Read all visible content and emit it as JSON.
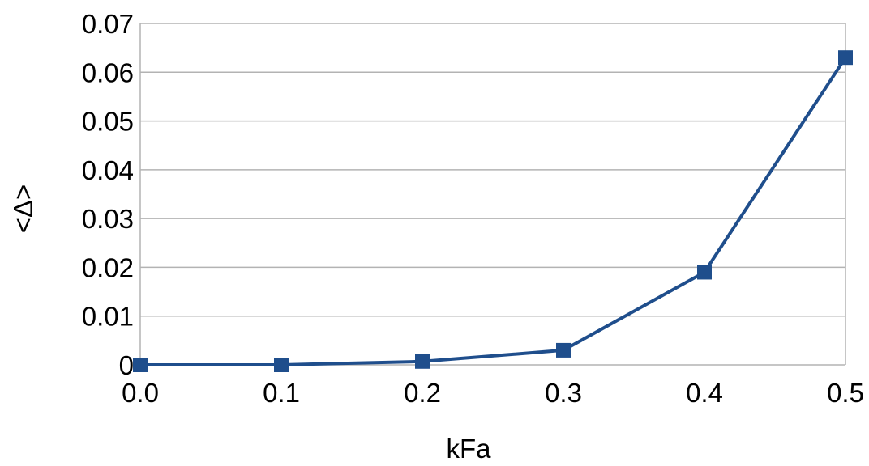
{
  "chart_data": {
    "type": "line",
    "title": "",
    "xlabel": "kFa",
    "ylabel": "<Δ>",
    "x": [
      0.0,
      0.1,
      0.2,
      0.3,
      0.4,
      0.5
    ],
    "series": [
      {
        "values": [
          0.0,
          0.0,
          0.0007,
          0.003,
          0.019,
          0.063
        ],
        "color": "#1f4e8c",
        "marker": "square"
      }
    ],
    "xticks": [
      "0.0",
      "0.1",
      "0.2",
      "0.3",
      "0.4",
      "0.5"
    ],
    "yticks": [
      "0",
      "0.01",
      "0.02",
      "0.03",
      "0.04",
      "0.05",
      "0.06",
      "0.07"
    ],
    "xlim": [
      0.0,
      0.5
    ],
    "ylim": [
      0,
      0.07
    ],
    "grid": true,
    "legend": "none"
  }
}
